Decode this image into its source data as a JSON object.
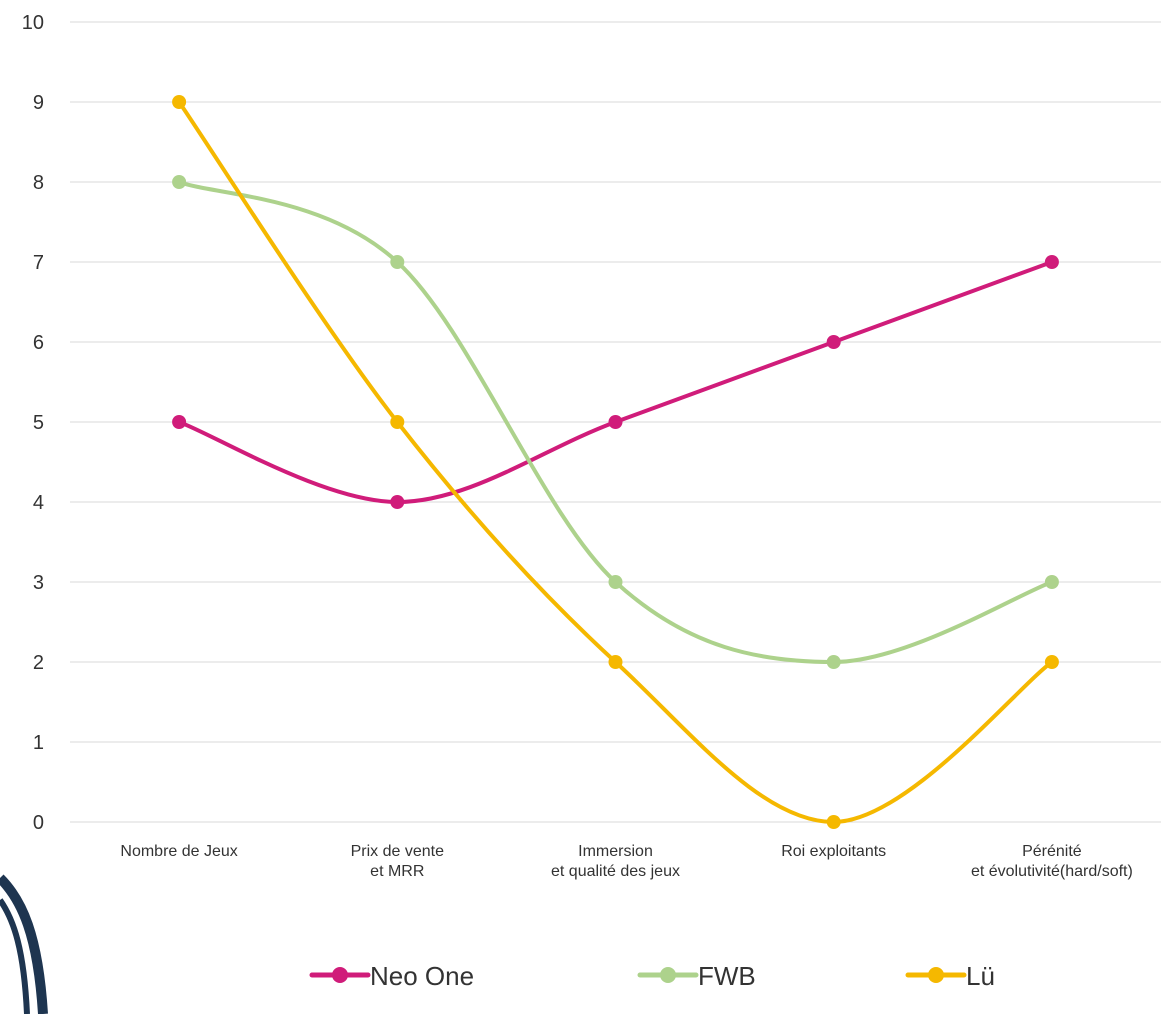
{
  "chart_data": {
    "type": "line",
    "smooth": true,
    "categories": [
      [
        "Nombre de Jeux"
      ],
      [
        "Prix de vente",
        "et MRR"
      ],
      [
        "Immersion",
        "et qualité des jeux"
      ],
      [
        "Roi exploitants"
      ],
      [
        "Pérénité",
        "et évolutivité(hard/soft)"
      ]
    ],
    "series": [
      {
        "name": "Neo One",
        "color": "#d01c7a",
        "values": [
          5,
          4,
          5,
          6,
          7
        ]
      },
      {
        "name": "FWB",
        "color": "#add28c",
        "values": [
          8,
          7,
          3,
          2,
          3
        ]
      },
      {
        "name": "Lü",
        "color": "#f5b800",
        "values": [
          9,
          5,
          2,
          0,
          2
        ]
      }
    ],
    "ylim": [
      0,
      10
    ],
    "yticks": [
      "0",
      "1",
      "2",
      "3",
      "4",
      "5",
      "6",
      "7",
      "8",
      "9",
      "10"
    ],
    "grid": true,
    "legend_position": "bottom"
  },
  "decoration": {
    "corner_logo_color": "#1e3550",
    "corner_logo": "corner-logo-icon"
  }
}
